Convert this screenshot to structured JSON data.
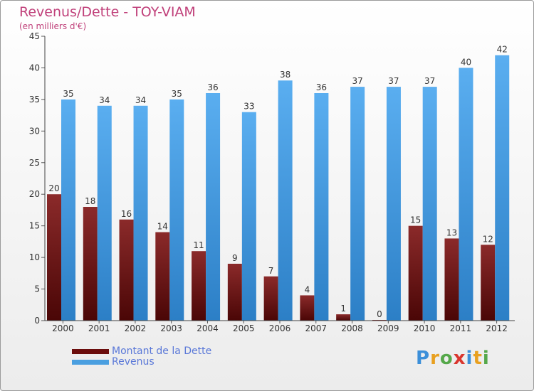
{
  "header": {
    "title": "Revenus/Dette - TOY-VIAM",
    "subtitle": "(en milliers d'€)"
  },
  "legend": {
    "items": [
      {
        "label": "Montant de la Dette",
        "color": "#7a1c1c"
      },
      {
        "label": "Revenus",
        "color": "#4a9fe0"
      }
    ]
  },
  "logo": {
    "text": "Proxiti",
    "icon": "proxiti-logo"
  },
  "chart_data": {
    "type": "bar",
    "categories": [
      "2000",
      "2001",
      "2002",
      "2003",
      "2004",
      "2005",
      "2006",
      "2007",
      "2008",
      "2009",
      "2010",
      "2011",
      "2012"
    ],
    "series": [
      {
        "name": "Montant de la Dette",
        "color": "#7a1c1c",
        "values": [
          20,
          18,
          16,
          14,
          11,
          9,
          7,
          4,
          1,
          0,
          15,
          13,
          12
        ]
      },
      {
        "name": "Revenus",
        "color": "#4a9fe0",
        "values": [
          35,
          34,
          34,
          35,
          36,
          33,
          38,
          36,
          37,
          37,
          37,
          40,
          42
        ]
      }
    ],
    "yticks": [
      0,
      5,
      10,
      15,
      20,
      25,
      30,
      35,
      40,
      45
    ],
    "ylim": [
      0,
      45
    ],
    "grid": false,
    "data_labels": true,
    "legend_position": "bottom-left",
    "title": "Revenus/Dette - TOY-VIAM",
    "ylabel": "(en milliers d'€)",
    "xlabel": ""
  }
}
